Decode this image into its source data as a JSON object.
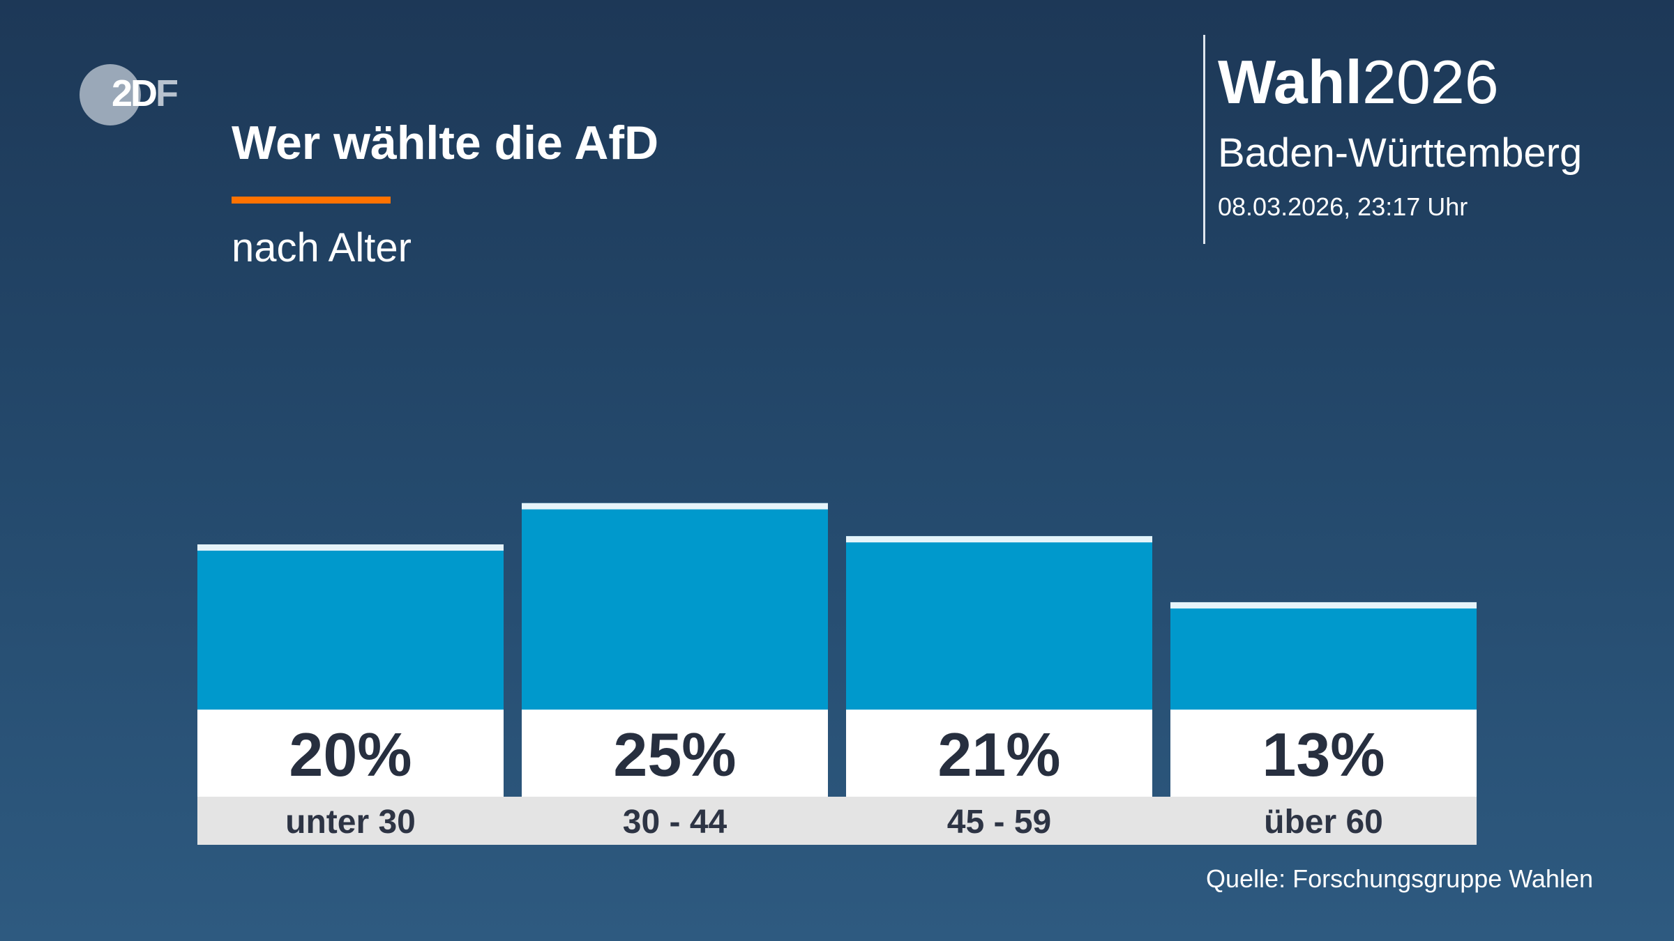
{
  "logo": {
    "text": "ZDF"
  },
  "header": {
    "title": "Wer wählte die AfD",
    "subtitle": "nach Alter",
    "accent_color": "#ff7200"
  },
  "branding": {
    "brand_bold": "Wahl",
    "brand_year": "2026",
    "region": "Baden-Württemberg",
    "datetime": "08.03.2026, 23:17 Uhr"
  },
  "source": "Quelle: Forschungsgruppe Wahlen",
  "chart_data": {
    "type": "bar",
    "title": "Wer wählte die AfD",
    "subtitle": "nach Alter",
    "categories": [
      "unter 30",
      "30 - 44",
      "45 - 59",
      "über 60"
    ],
    "values": [
      20,
      25,
      21,
      13
    ],
    "value_labels": [
      "20%",
      "25%",
      "21%",
      "13%"
    ],
    "unit": "%",
    "bar_color": "#0099cc",
    "cap_color": "#e6f4fa",
    "grid": false,
    "legend": "none"
  }
}
